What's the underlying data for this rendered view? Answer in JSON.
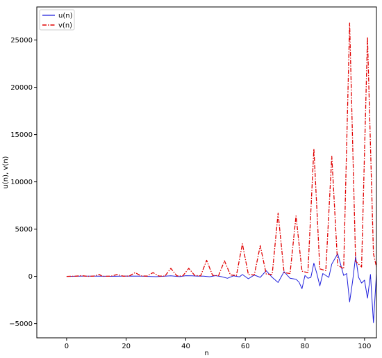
{
  "chart_data": {
    "type": "line",
    "xlabel": "n",
    "ylabel": "u(n), v(n)",
    "xlim": [
      -10,
      104
    ],
    "ylim": [
      -6500,
      28500
    ],
    "xticks": [
      0,
      20,
      40,
      60,
      80,
      100
    ],
    "yticks": [
      -5000,
      0,
      5000,
      10000,
      15000,
      20000,
      25000
    ],
    "ytick_labels": [
      "−5000",
      "0",
      "5000",
      "10000",
      "15000",
      "20000",
      "25000"
    ],
    "grid": false,
    "legend": "top-left",
    "series": [
      {
        "name": "u(n)",
        "color": "#1f1fdc",
        "style": "solid",
        "points": [
          [
            0,
            0
          ],
          [
            5,
            20
          ],
          [
            10,
            30
          ],
          [
            15,
            10
          ],
          [
            20,
            40
          ],
          [
            25,
            20
          ],
          [
            30,
            -30
          ],
          [
            35,
            60
          ],
          [
            38,
            -20
          ],
          [
            40,
            70
          ],
          [
            42,
            60
          ],
          [
            44,
            20
          ],
          [
            46,
            30
          ],
          [
            48,
            -40
          ],
          [
            50,
            80
          ],
          [
            52,
            -30
          ],
          [
            54,
            -200
          ],
          [
            56,
            60
          ],
          [
            58,
            -50
          ],
          [
            59,
            200
          ],
          [
            61,
            -250
          ],
          [
            63,
            150
          ],
          [
            65,
            -100
          ],
          [
            67,
            600
          ],
          [
            69,
            -100
          ],
          [
            71,
            -650
          ],
          [
            73,
            500
          ],
          [
            75,
            -200
          ],
          [
            77,
            -300
          ],
          [
            78,
            -600
          ],
          [
            79,
            -1300
          ],
          [
            80,
            100
          ],
          [
            81,
            -200
          ],
          [
            82,
            -100
          ],
          [
            83,
            1400
          ],
          [
            84,
            300
          ],
          [
            85,
            -1000
          ],
          [
            86,
            300
          ],
          [
            88,
            -100
          ],
          [
            89,
            1300
          ],
          [
            91,
            2400
          ],
          [
            93,
            100
          ],
          [
            94,
            300
          ],
          [
            95,
            -2700
          ],
          [
            96,
            -500
          ],
          [
            97,
            2100
          ],
          [
            98,
            -100
          ],
          [
            99,
            -700
          ],
          [
            100,
            -400
          ],
          [
            101,
            -2300
          ],
          [
            102,
            200
          ],
          [
            103,
            -4900
          ],
          [
            104,
            300
          ]
        ]
      },
      {
        "name": "v(n)",
        "color": "#e00000",
        "style": "dashdot",
        "points": [
          [
            0,
            0
          ],
          [
            3,
            20
          ],
          [
            5,
            80
          ],
          [
            7,
            10
          ],
          [
            9,
            30
          ],
          [
            11,
            200
          ],
          [
            12,
            10
          ],
          [
            15,
            30
          ],
          [
            17,
            200
          ],
          [
            19,
            20
          ],
          [
            21,
            40
          ],
          [
            23,
            400
          ],
          [
            25,
            50
          ],
          [
            27,
            30
          ],
          [
            29,
            400
          ],
          [
            31,
            40
          ],
          [
            33,
            30
          ],
          [
            35,
            850
          ],
          [
            37,
            60
          ],
          [
            39,
            50
          ],
          [
            41,
            850
          ],
          [
            43,
            100
          ],
          [
            45,
            60
          ],
          [
            47,
            1700
          ],
          [
            49,
            100
          ],
          [
            51,
            80
          ],
          [
            53,
            1650
          ],
          [
            55,
            150
          ],
          [
            57,
            100
          ],
          [
            59,
            3450
          ],
          [
            61,
            200
          ],
          [
            63,
            150
          ],
          [
            65,
            3250
          ],
          [
            67,
            250
          ],
          [
            69,
            200
          ],
          [
            71,
            6700
          ],
          [
            73,
            400
          ],
          [
            75,
            300
          ],
          [
            77,
            6400
          ],
          [
            79,
            550
          ],
          [
            81,
            400
          ],
          [
            83,
            13500
          ],
          [
            85,
            800
          ],
          [
            87,
            600
          ],
          [
            89,
            12700
          ],
          [
            91,
            1200
          ],
          [
            93,
            800
          ],
          [
            95,
            26800
          ],
          [
            97,
            1600
          ],
          [
            99,
            1000
          ],
          [
            101,
            25300
          ],
          [
            103,
            2400
          ],
          [
            104,
            1000
          ]
        ]
      }
    ]
  }
}
